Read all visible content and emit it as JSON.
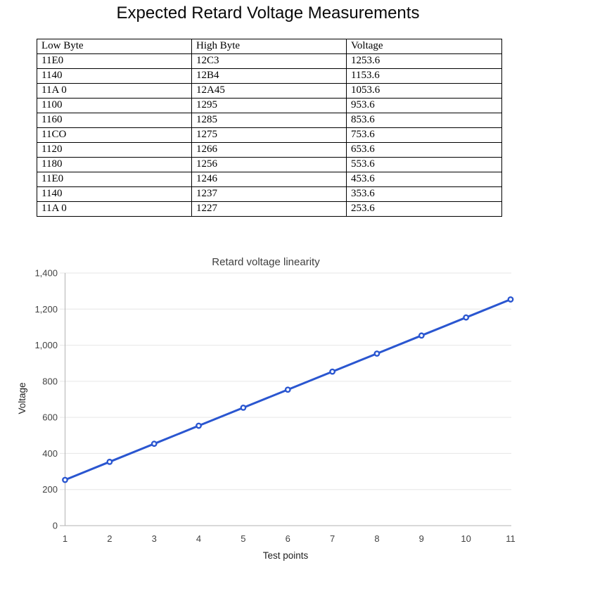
{
  "page": {
    "title": "Expected Retard Voltage Measurements"
  },
  "table": {
    "headers": [
      "Low Byte",
      "High Byte",
      "Voltage"
    ],
    "rows": [
      [
        "11E0",
        "12C3",
        "1253.6"
      ],
      [
        "1140",
        "12B4",
        "1153.6"
      ],
      [
        "11A 0",
        "12A45",
        "1053.6"
      ],
      [
        "1100",
        "1295",
        "953.6"
      ],
      [
        "1160",
        "1285",
        "853.6"
      ],
      [
        "11CO",
        "1275",
        "753.6"
      ],
      [
        "1120",
        "1266",
        "653.6"
      ],
      [
        "1180",
        "1256",
        "553.6"
      ],
      [
        "11E0",
        "1246",
        "453.6"
      ],
      [
        "1140",
        "1237",
        "353.6"
      ],
      [
        "11A 0",
        "1227",
        "253.6"
      ]
    ]
  },
  "chart_data": {
    "type": "line",
    "title": "Retard voltage linearity",
    "xlabel": "Test points",
    "ylabel": "Voltage",
    "x": [
      1,
      2,
      3,
      4,
      5,
      6,
      7,
      8,
      9,
      10,
      11
    ],
    "series": [
      {
        "name": "Voltage",
        "values": [
          253.6,
          353.6,
          453.6,
          553.6,
          653.6,
          753.6,
          853.6,
          953.6,
          1053.6,
          1153.6,
          1253.6
        ]
      }
    ],
    "ylim": [
      0,
      1400
    ],
    "ytick_step": 200,
    "ytick_labels": [
      "0",
      "200",
      "400",
      "600",
      "800",
      "1,000",
      "1,200",
      "1,400"
    ],
    "xtick_labels": [
      "1",
      "2",
      "3",
      "4",
      "5",
      "6",
      "7",
      "8",
      "9",
      "10",
      "11"
    ],
    "grid": true,
    "legend": "none",
    "marker": "open-circle",
    "colors": {
      "line": "#2a56d0",
      "marker_fill": "#ffffff",
      "gridline": "#e6e6e6",
      "axis": "#b3b3b3",
      "tick_label": "#424242",
      "title": "#3f3f3f",
      "axis_title": "#1f1f1f"
    }
  }
}
